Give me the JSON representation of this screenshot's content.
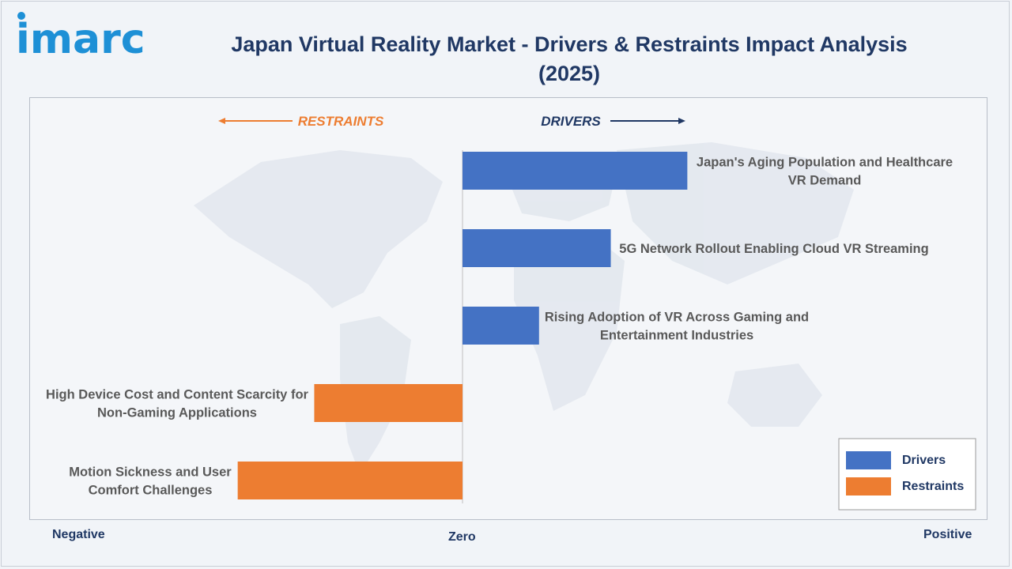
{
  "brand": {
    "logo_text": "imarc"
  },
  "header": {
    "title": "Japan Virtual Reality Market - Drivers & Restraints Impact Analysis (2025)"
  },
  "direction_labels": {
    "restraints": "RESTRAINTS",
    "drivers": "DRIVERS"
  },
  "axis_words": {
    "negative": "Negative",
    "zero": "Zero",
    "positive": "Positive"
  },
  "colors": {
    "drivers": "#4472c4",
    "restraints": "#ed7d31",
    "title": "#203864",
    "label": "#595959"
  },
  "legend": [
    {
      "name": "Drivers",
      "color": "#4472c4"
    },
    {
      "name": "Restraints",
      "color": "#ed7d31"
    }
  ],
  "chart_data": {
    "type": "bar",
    "orientation": "horizontal",
    "title": "Japan Virtual Reality Market - Drivers & Restraints Impact Analysis (2025)",
    "xlim": [
      -1,
      1
    ],
    "legend_position": "bottom-right",
    "categories": [
      "Japan's Aging Population and Healthcare VR Demand",
      "5G Network Rollout Enabling Cloud VR Streaming",
      "Rising Adoption of VR Across Gaming and Entertainment Industries",
      "High Device Cost and Content Scarcity for Non-Gaming Applications",
      "Motion Sickness and User Comfort Challenges"
    ],
    "label_lines": [
      [
        "Japan's Aging Population and Healthcare",
        "VR Demand"
      ],
      [
        "5G Network Rollout Enabling Cloud VR Streaming"
      ],
      [
        "Rising Adoption of VR Across Gaming and",
        "Entertainment Industries"
      ],
      [
        "High Device Cost and Content Scarcity for",
        "Non-Gaming Applications"
      ],
      [
        "Motion Sickness and User",
        "Comfort Challenges"
      ]
    ],
    "series": [
      {
        "name": "Drivers",
        "values": [
          0.47,
          0.31,
          0.16,
          null,
          null
        ]
      },
      {
        "name": "Restraints",
        "values": [
          null,
          null,
          null,
          -0.31,
          -0.47
        ]
      }
    ]
  }
}
